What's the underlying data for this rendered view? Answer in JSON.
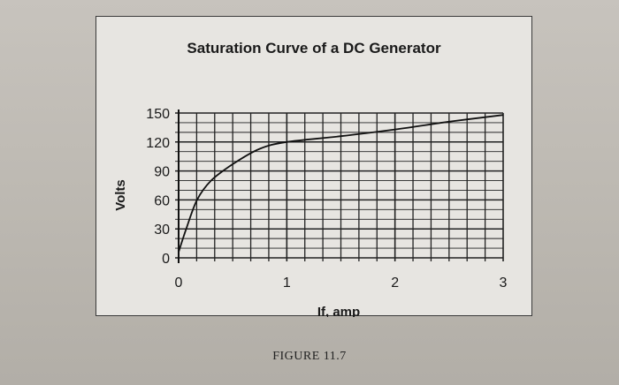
{
  "figure_caption": "FIGURE 11.7",
  "chart_data": {
    "type": "line",
    "title": "Saturation Curve of a DC Generator",
    "xlabel": "If, amp",
    "ylabel": "Volts",
    "xlim": [
      0,
      3
    ],
    "ylim": [
      0,
      150
    ],
    "x_ticks": [
      0,
      1,
      2,
      3
    ],
    "y_ticks": [
      0,
      30,
      60,
      90,
      120,
      150
    ],
    "grid": true,
    "series": [
      {
        "x": [
          0,
          0.07,
          0.17,
          0.3,
          0.5,
          0.75,
          1.0,
          1.5,
          2.0,
          2.5,
          3.0
        ],
        "y": [
          6,
          30,
          60,
          80,
          97,
          113,
          120,
          126,
          133,
          141,
          148
        ]
      }
    ]
  }
}
